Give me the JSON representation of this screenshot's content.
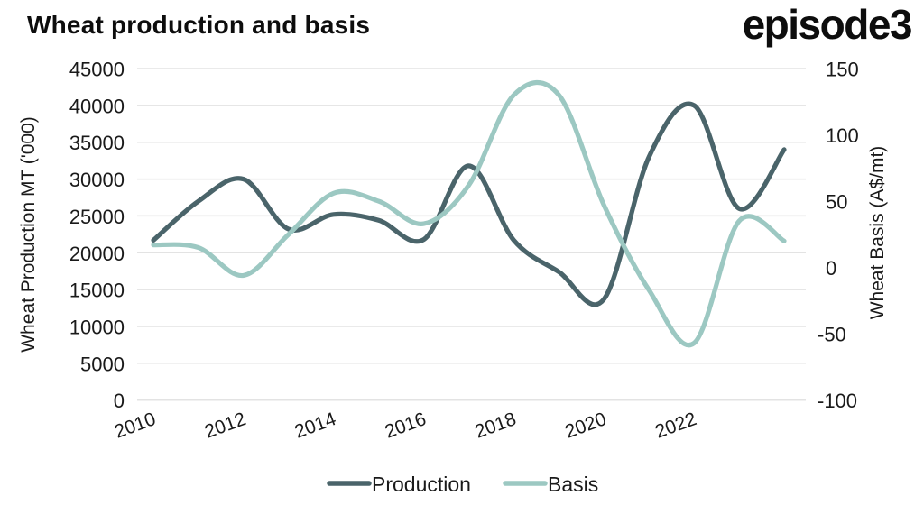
{
  "page": {
    "title": "Wheat production and basis",
    "brand": "episode3"
  },
  "chart_data": {
    "type": "line",
    "title": "Wheat production and basis",
    "x": [
      2010,
      2011,
      2012,
      2013,
      2014,
      2015,
      2016,
      2017,
      2018,
      2019,
      2020,
      2021,
      2022,
      2023,
      2024
    ],
    "x_tick_labels": [
      "2010",
      "2012",
      "2014",
      "2016",
      "2018",
      "2020",
      "2022"
    ],
    "series": [
      {
        "name": "Production",
        "yaxis": "left",
        "color": "#4a646a",
        "values": [
          21700,
          27000,
          30000,
          23200,
          25200,
          24400,
          21800,
          31800,
          21700,
          17400,
          13700,
          33000,
          40000,
          26000,
          34000
        ]
      },
      {
        "name": "Basis",
        "yaxis": "right",
        "color": "#9cc8c2",
        "values": [
          17,
          15,
          -6,
          25,
          56,
          50,
          33,
          62,
          130,
          130,
          47,
          -17,
          -57,
          35,
          20
        ]
      }
    ],
    "left_axis": {
      "label": "Wheat Production MT ('000)",
      "min": 0,
      "max": 45000,
      "step": 5000,
      "tick_labels": [
        "0",
        "5000",
        "10000",
        "15000",
        "20000",
        "25000",
        "30000",
        "35000",
        "40000",
        "45000"
      ]
    },
    "right_axis": {
      "label": "Wheat Basis (A$/mt)",
      "min": -100,
      "max": 150,
      "step": 50,
      "tick_labels": [
        "-100",
        "-50",
        "0",
        "50",
        "100",
        "150"
      ]
    },
    "legend": {
      "position": "bottom",
      "entries": [
        "Production",
        "Basis"
      ]
    },
    "grid": {
      "horizontal": true,
      "color": "#e3e3e3"
    },
    "style": {
      "background": "#ffffff",
      "text_color": "#1a1a1a",
      "line_width": 5.2
    }
  }
}
